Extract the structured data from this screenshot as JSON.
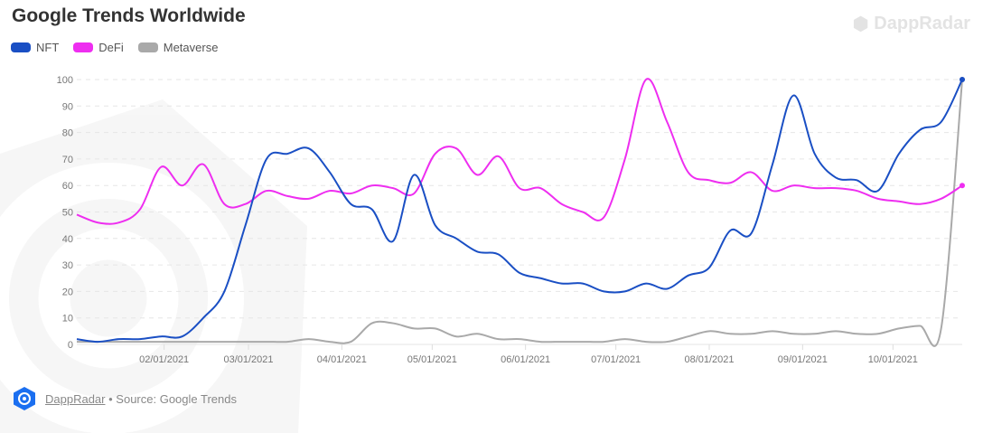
{
  "chart_data": {
    "type": "line",
    "title": "Google Trends Worldwide",
    "xlabel": "",
    "ylabel": "",
    "ylim": [
      0,
      100
    ],
    "yticks": [
      0,
      10,
      20,
      30,
      40,
      50,
      60,
      70,
      80,
      90,
      100
    ],
    "xlim_day_of_2021": [
      2,
      296
    ],
    "xticks": [
      {
        "day": 31,
        "label": "02/01/2021"
      },
      {
        "day": 59,
        "label": "03/01/2021"
      },
      {
        "day": 90,
        "label": "04/01/2021"
      },
      {
        "day": 120,
        "label": "05/01/2021"
      },
      {
        "day": 151,
        "label": "06/01/2021"
      },
      {
        "day": 181,
        "label": "07/01/2021"
      },
      {
        "day": 212,
        "label": "08/01/2021"
      },
      {
        "day": 243,
        "label": "09/01/2021"
      },
      {
        "day": 273,
        "label": "10/01/2021"
      }
    ],
    "x_step_days": 7,
    "legend_position": "top-left",
    "grid": true,
    "series": [
      {
        "name": "NFT",
        "color": "#1a4fc4",
        "values": [
          2,
          1,
          2,
          2,
          3,
          3,
          10,
          20,
          45,
          70,
          72,
          74,
          65,
          53,
          51,
          39,
          64,
          45,
          40,
          35,
          34,
          27,
          25,
          23,
          23,
          20,
          20,
          23,
          21,
          26,
          29,
          43,
          42,
          68,
          94,
          72,
          63,
          62,
          58,
          72,
          81,
          84,
          100
        ]
      },
      {
        "name": "DeFi",
        "color": "#ee2ef0",
        "values": [
          49,
          46,
          46,
          51,
          67,
          60,
          68,
          53,
          53,
          58,
          56,
          55,
          58,
          57,
          60,
          59,
          57,
          72,
          74,
          64,
          71,
          59,
          59,
          53,
          50,
          48,
          70,
          100,
          84,
          65,
          62,
          61,
          65,
          58,
          60,
          59,
          59,
          58,
          55,
          54,
          53,
          55,
          60
        ]
      },
      {
        "name": "Metaverse",
        "color": "#a9a9a9",
        "values": [
          1,
          1,
          1,
          1,
          1,
          1,
          1,
          1,
          1,
          1,
          1,
          2,
          1,
          1,
          8,
          8,
          6,
          6,
          3,
          4,
          2,
          2,
          1,
          1,
          1,
          1,
          2,
          1,
          1,
          3,
          5,
          4,
          4,
          5,
          4,
          4,
          5,
          4,
          4,
          6,
          7,
          6,
          100
        ]
      }
    ]
  },
  "watermark": "DappRadar",
  "footer": {
    "link": "DappRadar",
    "source": "• Source: Google Trends"
  }
}
